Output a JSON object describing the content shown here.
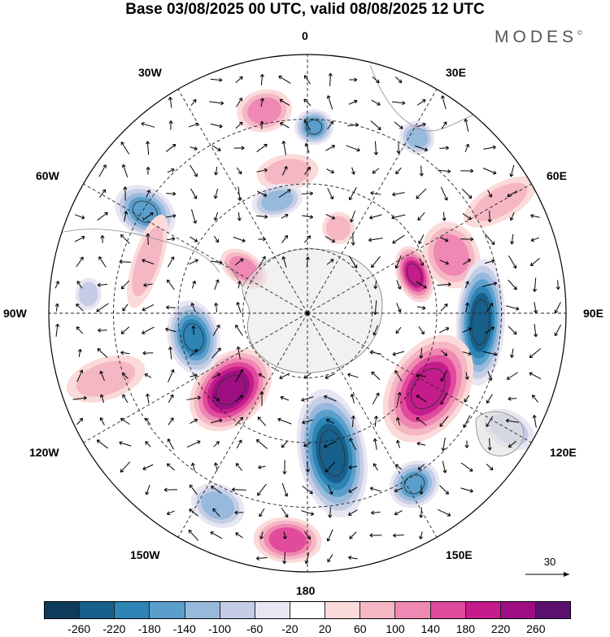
{
  "title": "Base 03/08/2025 00 UTC, valid 08/08/2025 12 UTC",
  "brand": "MODES",
  "brand_mark": "©",
  "longitude_labels": {
    "top": "0",
    "top_right": "30E",
    "right_upper": "60E",
    "right": "90E",
    "right_lower": "120E",
    "bottom_right": "150E",
    "bottom": "180",
    "bottom_left": "150W",
    "left_lower": "120W",
    "left": "90W",
    "left_upper": "60W",
    "top_left": "30W"
  },
  "reference_vector": {
    "value": "30"
  },
  "colorbar": {
    "colors": [
      "#0e3b5c",
      "#17608c",
      "#2d84b5",
      "#5a9fcb",
      "#97b9dc",
      "#c5cde6",
      "#e8e6f2",
      "#ffffff",
      "#fbdada",
      "#f5b7c4",
      "#ef88b2",
      "#e14b9c",
      "#c51c8c",
      "#9c0e82",
      "#5b0f6e"
    ],
    "tick_labels": [
      "-260",
      "-220",
      "-180",
      "-140",
      "-100",
      "-60",
      "-20",
      "20",
      "60",
      "100",
      "140",
      "180",
      "220",
      "260"
    ]
  },
  "anomalies": [
    {
      "name": "pink-high-north",
      "lon": -12,
      "r": 0.8,
      "rx": 34,
      "ry": 26,
      "value": 110
    },
    {
      "name": "pink-high-north-2",
      "lon": -8,
      "r": 0.55,
      "rx": 38,
      "ry": 22,
      "value": 90
    },
    {
      "name": "blue-low-north",
      "lon": 2,
      "r": 0.72,
      "rx": 24,
      "ry": 22,
      "value": -150
    },
    {
      "name": "blue-low-ne",
      "lon": 32,
      "r": 0.8,
      "rx": 22,
      "ry": 20,
      "value": -120
    },
    {
      "name": "blue-low-nw",
      "lon": -58,
      "r": 0.74,
      "rx": 30,
      "ry": 40,
      "value": -170
    },
    {
      "name": "blue-low-n-inner",
      "lon": -15,
      "r": 0.45,
      "rx": 32,
      "ry": 20,
      "value": -110
    },
    {
      "name": "pink-small-inner",
      "lon": 20,
      "r": 0.35,
      "rx": 20,
      "ry": 20,
      "value": 70
    },
    {
      "name": "pink-east",
      "lon": 68,
      "r": 0.6,
      "rx": 42,
      "ry": 34,
      "value": 120
    },
    {
      "name": "pink-east-inner",
      "lon": 70,
      "r": 0.44,
      "rx": 36,
      "ry": 22,
      "value": 200
    },
    {
      "name": "blue-east-band",
      "lon": 93,
      "r": 0.67,
      "rx": 78,
      "ry": 30,
      "value": -230
    },
    {
      "name": "pink-se",
      "lon": 122,
      "r": 0.55,
      "rx": 72,
      "ry": 48,
      "value": 190
    },
    {
      "name": "blue-south-central",
      "lon": 170,
      "r": 0.55,
      "rx": 42,
      "ry": 80,
      "value": -240
    },
    {
      "name": "pink-sw",
      "lon": -135,
      "r": 0.42,
      "rx": 42,
      "ry": 58,
      "value": 230
    },
    {
      "name": "blue-west",
      "lon": -102,
      "r": 0.45,
      "rx": 46,
      "ry": 32,
      "value": -200
    },
    {
      "name": "pink-west-band",
      "lon": -72,
      "r": 0.65,
      "rx": 60,
      "ry": 18,
      "value": 90
    },
    {
      "name": "pink-west-inner",
      "lon": -55,
      "r": 0.3,
      "rx": 20,
      "ry": 32,
      "value": 130
    },
    {
      "name": "pink-south",
      "lon": -175,
      "r": 0.88,
      "rx": 42,
      "ry": 28,
      "value": 140
    },
    {
      "name": "blue-south-right",
      "lon": 148,
      "r": 0.78,
      "rx": 32,
      "ry": 28,
      "value": -160
    },
    {
      "name": "blue-sw-far",
      "lon": -155,
      "r": 0.82,
      "rx": 34,
      "ry": 26,
      "value": -110
    },
    {
      "name": "pink-left-far",
      "lon": -108,
      "r": 0.82,
      "rx": 26,
      "ry": 50,
      "value": 60
    },
    {
      "name": "blue-left-far",
      "lon": -85,
      "r": 0.85,
      "rx": 20,
      "ry": 16,
      "value": -80
    },
    {
      "name": "pink-right-far",
      "lon": 60,
      "r": 0.86,
      "rx": 22,
      "ry": 50,
      "value": 80
    },
    {
      "name": "blue-right-lower",
      "lon": 120,
      "r": 0.9,
      "rx": 22,
      "ry": 34,
      "value": -70
    }
  ]
}
